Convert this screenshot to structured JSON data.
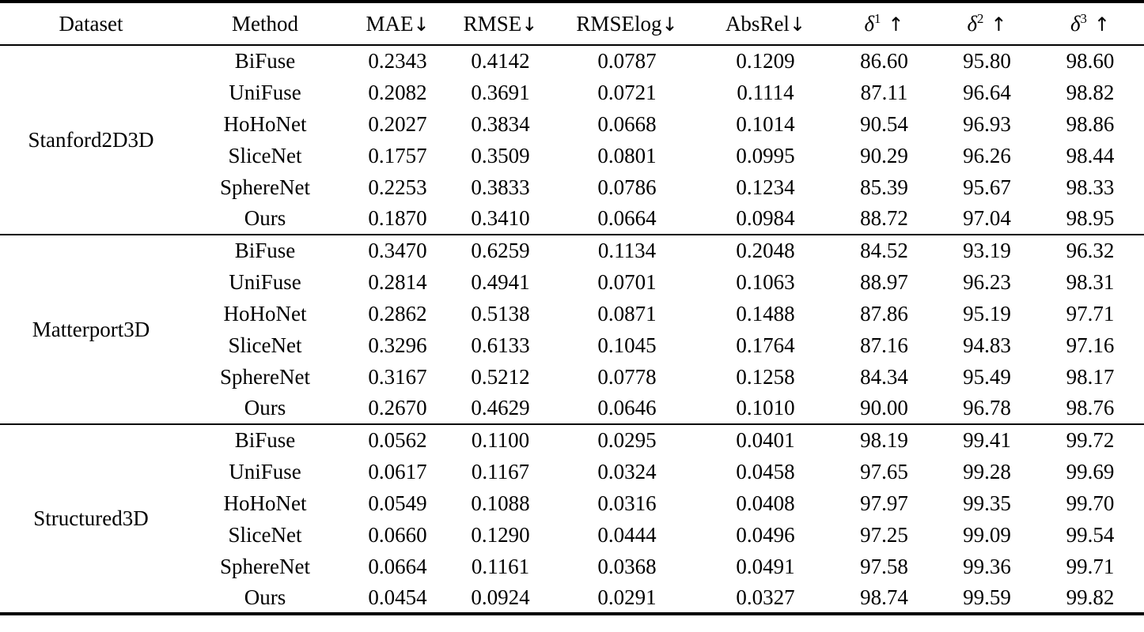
{
  "chart_data": {
    "type": "table",
    "columns": [
      {
        "label": "Dataset",
        "arrow": "",
        "sup": ""
      },
      {
        "label": "Method",
        "arrow": "",
        "sup": ""
      },
      {
        "label": "MAE",
        "arrow": "↓",
        "sup": ""
      },
      {
        "label": "RMSE",
        "arrow": "↓",
        "sup": ""
      },
      {
        "label": "RMSElog",
        "arrow": "↓",
        "sup": ""
      },
      {
        "label": "AbsRel",
        "arrow": "↓",
        "sup": ""
      },
      {
        "label": "δ",
        "sup": "1",
        "arrow": "↑"
      },
      {
        "label": "δ",
        "sup": "2",
        "arrow": "↑"
      },
      {
        "label": "δ",
        "sup": "3",
        "arrow": "↑"
      }
    ],
    "groups": [
      {
        "dataset": "Stanford2D3D",
        "rows": [
          {
            "method": "BiFuse",
            "values": [
              "0.2343",
              "0.4142",
              "0.0787",
              "0.1209",
              "86.60",
              "95.80",
              "98.60"
            ],
            "bold": [
              false,
              false,
              false,
              false,
              false,
              false,
              false
            ]
          },
          {
            "method": "UniFuse",
            "values": [
              "0.2082",
              "0.3691",
              "0.0721",
              "0.1114",
              "87.11",
              "96.64",
              "98.82"
            ],
            "bold": [
              false,
              false,
              false,
              false,
              false,
              false,
              false
            ]
          },
          {
            "method": "HoHoNet",
            "values": [
              "0.2027",
              "0.3834",
              "0.0668",
              "0.1014",
              "90.54",
              "96.93",
              "98.86"
            ],
            "bold": [
              false,
              false,
              false,
              false,
              true,
              false,
              false
            ]
          },
          {
            "method": "SliceNet",
            "values": [
              "0.1757",
              "0.3509",
              "0.0801",
              "0.0995",
              "90.29",
              "96.26",
              "98.44"
            ],
            "bold": [
              true,
              false,
              false,
              false,
              false,
              false,
              false
            ]
          },
          {
            "method": "SphereNet",
            "values": [
              "0.2253",
              "0.3833",
              "0.0786",
              "0.1234",
              "85.39",
              "95.67",
              "98.33"
            ],
            "bold": [
              false,
              false,
              false,
              false,
              false,
              false,
              false
            ]
          },
          {
            "method": "Ours",
            "values": [
              "0.1870",
              "0.3410",
              "0.0664",
              "0.0984",
              "88.72",
              "97.04",
              "98.95"
            ],
            "bold": [
              false,
              true,
              true,
              true,
              false,
              true,
              true
            ]
          }
        ]
      },
      {
        "dataset": "Matterport3D",
        "rows": [
          {
            "method": "BiFuse",
            "values": [
              "0.3470",
              "0.6259",
              "0.1134",
              "0.2048",
              "84.52",
              "93.19",
              "96.32"
            ],
            "bold": [
              false,
              false,
              false,
              false,
              false,
              false,
              false
            ]
          },
          {
            "method": "UniFuse",
            "values": [
              "0.2814",
              "0.4941",
              "0.0701",
              "0.1063",
              "88.97",
              "96.23",
              "98.31"
            ],
            "bold": [
              false,
              false,
              false,
              false,
              false,
              false,
              false
            ]
          },
          {
            "method": "HoHoNet",
            "values": [
              "0.2862",
              "0.5138",
              "0.0871",
              "0.1488",
              "87.86",
              "95.19",
              "97.71"
            ],
            "bold": [
              false,
              false,
              false,
              false,
              false,
              false,
              false
            ]
          },
          {
            "method": "SliceNet",
            "values": [
              "0.3296",
              "0.6133",
              "0.1045",
              "0.1764",
              "87.16",
              "94.83",
              "97.16"
            ],
            "bold": [
              false,
              false,
              false,
              false,
              false,
              false,
              false
            ]
          },
          {
            "method": "SphereNet",
            "values": [
              "0.3167",
              "0.5212",
              "0.0778",
              "0.1258",
              "84.34",
              "95.49",
              "98.17"
            ],
            "bold": [
              false,
              false,
              false,
              false,
              false,
              false,
              false
            ]
          },
          {
            "method": "Ours",
            "values": [
              "0.2670",
              "0.4629",
              "0.0646",
              "0.1010",
              "90.00",
              "96.78",
              "98.76"
            ],
            "bold": [
              true,
              true,
              true,
              true,
              true,
              true,
              true
            ]
          }
        ]
      },
      {
        "dataset": "Structured3D",
        "rows": [
          {
            "method": "BiFuse",
            "values": [
              "0.0562",
              "0.1100",
              "0.0295",
              "0.0401",
              "98.19",
              "99.41",
              "99.72"
            ],
            "bold": [
              false,
              false,
              false,
              false,
              false,
              false,
              false
            ]
          },
          {
            "method": "UniFuse",
            "values": [
              "0.0617",
              "0.1167",
              "0.0324",
              "0.0458",
              "97.65",
              "99.28",
              "99.69"
            ],
            "bold": [
              false,
              false,
              false,
              false,
              false,
              false,
              false
            ]
          },
          {
            "method": "HoHoNet",
            "values": [
              "0.0549",
              "0.1088",
              "0.0316",
              "0.0408",
              "97.97",
              "99.35",
              "99.70"
            ],
            "bold": [
              false,
              false,
              false,
              false,
              false,
              false,
              false
            ]
          },
          {
            "method": "SliceNet",
            "values": [
              "0.0660",
              "0.1290",
              "0.0444",
              "0.0496",
              "97.25",
              "99.09",
              "99.54"
            ],
            "bold": [
              false,
              false,
              false,
              false,
              false,
              false,
              false
            ]
          },
          {
            "method": "SphereNet",
            "values": [
              "0.0664",
              "0.1161",
              "0.0368",
              "0.0491",
              "97.58",
              "99.36",
              "99.71"
            ],
            "bold": [
              false,
              false,
              false,
              false,
              false,
              false,
              false
            ]
          },
          {
            "method": "Ours",
            "values": [
              "0.0454",
              "0.0924",
              "0.0291",
              "0.0327",
              "98.74",
              "99.59",
              "99.82"
            ],
            "bold": [
              true,
              true,
              true,
              true,
              true,
              true,
              true
            ]
          }
        ]
      }
    ]
  }
}
